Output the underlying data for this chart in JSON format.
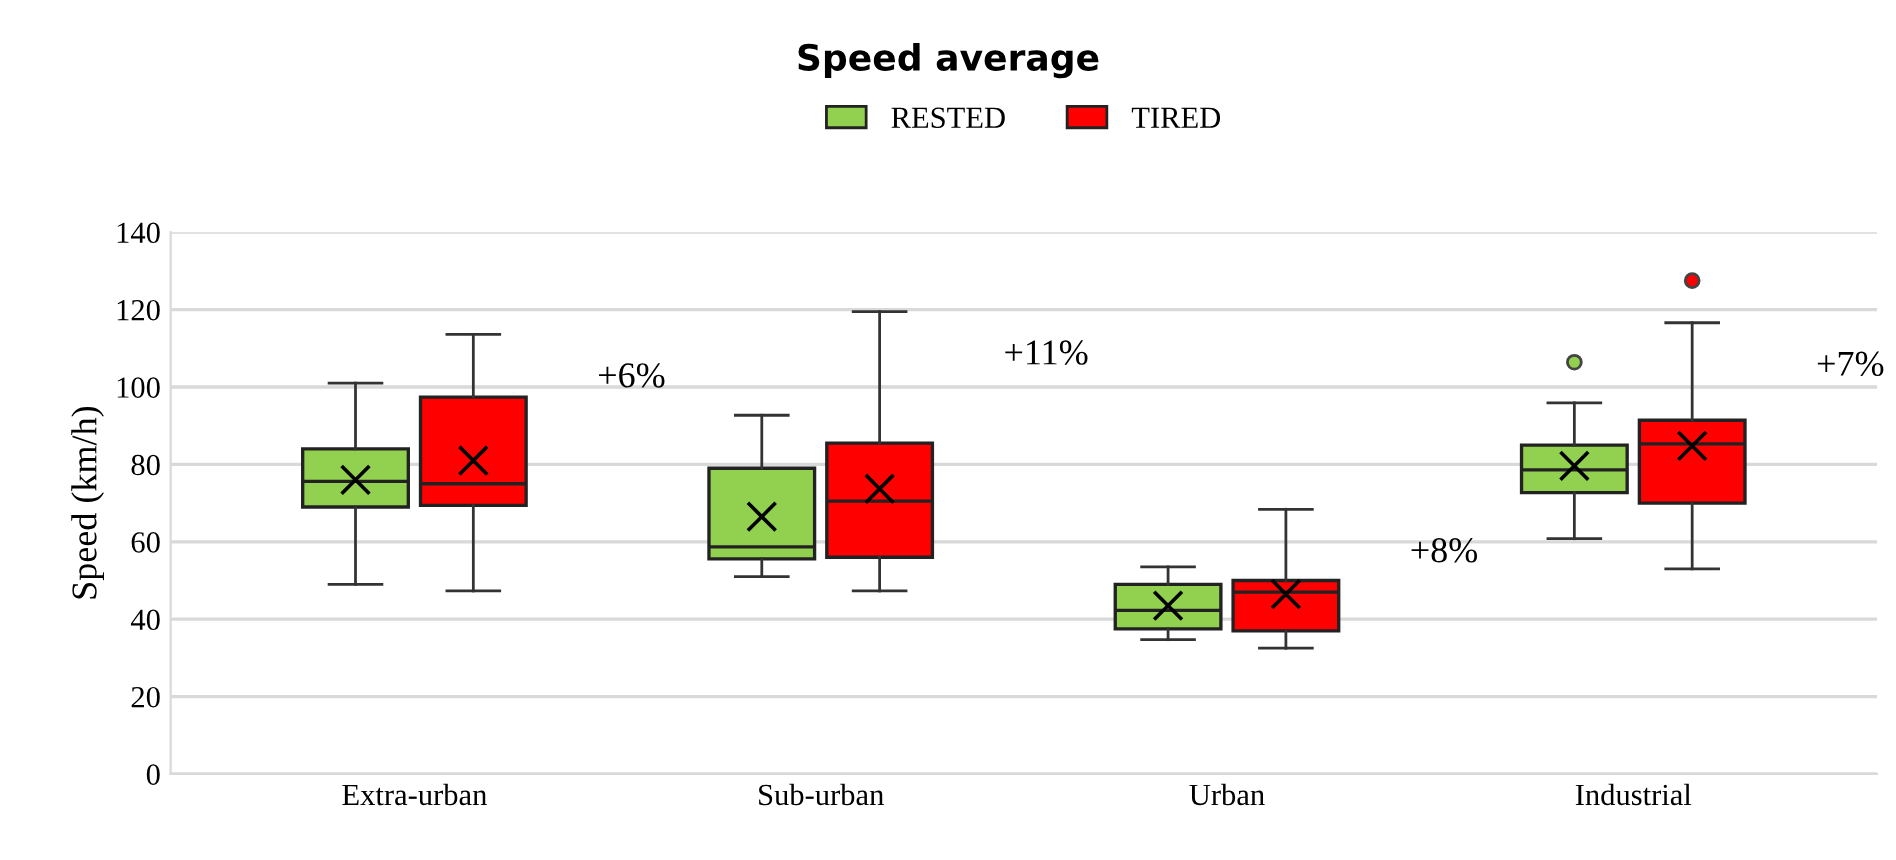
{
  "chart_data": {
    "type": "box",
    "title": "Speed average",
    "ylabel": "Speed (km/h)",
    "categories": [
      "Extra-urban",
      "Sub-urban",
      "Urban",
      "Industrial"
    ],
    "ylim": [
      0,
      140
    ],
    "yticks": [
      0,
      20,
      40,
      60,
      80,
      100,
      120,
      140
    ],
    "grid": "y",
    "legend": "top",
    "marker": "cross",
    "series": [
      {
        "name": "RESTED",
        "color": "#92d050",
        "boxes": [
          {
            "low": 49,
            "q1": 69,
            "median": 75.6,
            "q3": 84,
            "high": 101,
            "mean": 76
          },
          {
            "low": 51,
            "q1": 55.6,
            "median": 58.7,
            "q3": 79,
            "high": 92.7,
            "mean": 66.5
          },
          {
            "low": 34.7,
            "q1": 37.5,
            "median": 42.3,
            "q3": 49,
            "high": 53.5,
            "mean": 43.5
          },
          {
            "low": 60.8,
            "q1": 72.7,
            "median": 78.6,
            "q3": 85,
            "high": 95.9,
            "mean": 79.6,
            "outliers": [
              106.4
            ]
          }
        ]
      },
      {
        "name": "TIRED",
        "color": "#ff0000",
        "boxes": [
          {
            "low": 47.3,
            "q1": 69.4,
            "median": 75,
            "q3": 97.4,
            "high": 113.6,
            "mean": 81
          },
          {
            "low": 47.3,
            "q1": 56,
            "median": 70.5,
            "q3": 85.5,
            "high": 119.5,
            "mean": 73.7
          },
          {
            "low": 32.5,
            "q1": 37,
            "median": 47,
            "q3": 50,
            "high": 68.4,
            "mean": 46.5
          },
          {
            "low": 53,
            "q1": 70,
            "median": 85.3,
            "q3": 91.4,
            "high": 116.6,
            "mean": 84.8,
            "outliers": [
              127.5
            ]
          }
        ]
      }
    ],
    "annotations": [
      "+6%",
      "+11%",
      "+8%",
      "+7%"
    ]
  }
}
